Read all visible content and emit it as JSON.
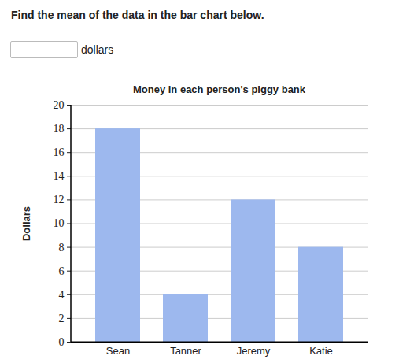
{
  "question": "Find the mean of the data in the bar chart below.",
  "answer_unit": "dollars",
  "chart_data": {
    "type": "bar",
    "title": "Money in each person's piggy bank",
    "y_label": "Dollars",
    "categories": [
      "Sean",
      "Tanner",
      "Jeremy",
      "Katie"
    ],
    "values": [
      18,
      4,
      12,
      8
    ],
    "color": "#9db8ee",
    "ylim": [
      0,
      20
    ],
    "yticks": [
      0,
      2,
      4,
      6,
      8,
      10,
      12,
      14,
      16,
      18,
      20
    ],
    "grid": true
  }
}
